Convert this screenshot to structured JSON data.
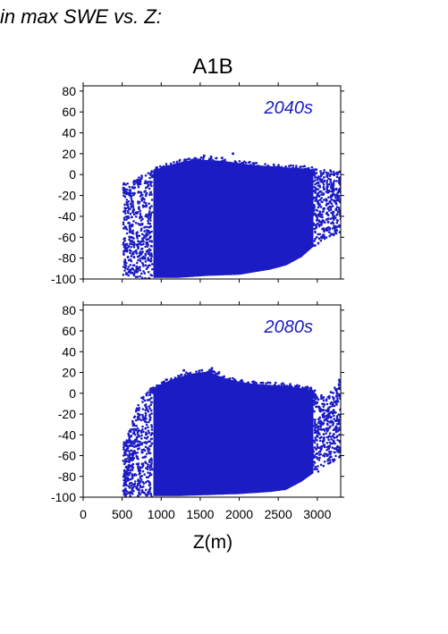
{
  "page_title": "in max SWE vs. Z:",
  "colors": {
    "points": "#1c1cc4",
    "axis": "#000000"
  },
  "chart_data": {
    "type": "scatter",
    "title": "A1B",
    "xlabel": "Z(m)",
    "ylabel": "",
    "xlim": [
      0,
      3300
    ],
    "ylim": [
      -100,
      85
    ],
    "xticks": [
      0,
      500,
      1000,
      1500,
      2000,
      2500,
      3000
    ],
    "yticks": [
      -100,
      -80,
      -60,
      -40,
      -20,
      0,
      20,
      40,
      60,
      80
    ],
    "panels": [
      {
        "label": "2040s",
        "series": [
          {
            "x_range": [
              530,
              3300
            ],
            "y_range": [
              -100,
              20
            ],
            "upper_envelope": [
              [
                600,
                -8
              ],
              [
                700,
                -2
              ],
              [
                800,
                2
              ],
              [
                900,
                4
              ],
              [
                1000,
                8
              ],
              [
                1200,
                12
              ],
              [
                1400,
                15
              ],
              [
                1600,
                15
              ],
              [
                1800,
                14
              ],
              [
                2000,
                12
              ],
              [
                2200,
                10
              ],
              [
                2400,
                9
              ],
              [
                2600,
                8
              ],
              [
                2800,
                7
              ],
              [
                2950,
                6
              ],
              [
                3100,
                4
              ],
              [
                3300,
                4
              ]
            ],
            "lower_envelope": [
              [
                600,
                -97
              ],
              [
                800,
                -100
              ],
              [
                1200,
                -100
              ],
              [
                1600,
                -98
              ],
              [
                2000,
                -97
              ],
              [
                2400,
                -92
              ],
              [
                2600,
                -88
              ],
              [
                2800,
                -80
              ],
              [
                2950,
                -70
              ],
              [
                3100,
                -62
              ],
              [
                3300,
                -55
              ]
            ],
            "outliers": [
              [
                1640,
                17
              ],
              [
                1920,
                20
              ],
              [
                1780,
                16
              ],
              [
                1550,
                18
              ]
            ]
          }
        ]
      },
      {
        "label": "2080s",
        "series": [
          {
            "x_range": [
              530,
              3300
            ],
            "y_range": [
              -100,
              24
            ],
            "upper_envelope": [
              [
                560,
                -45
              ],
              [
                620,
                -28
              ],
              [
                700,
                -12
              ],
              [
                800,
                2
              ],
              [
                900,
                6
              ],
              [
                1000,
                10
              ],
              [
                1200,
                16
              ],
              [
                1400,
                20
              ],
              [
                1600,
                22
              ],
              [
                1800,
                16
              ],
              [
                2000,
                12
              ],
              [
                2200,
                10
              ],
              [
                2400,
                9
              ],
              [
                2600,
                8
              ],
              [
                2800,
                6
              ],
              [
                2950,
                4
              ],
              [
                3100,
                -5
              ],
              [
                3300,
                14
              ]
            ],
            "lower_envelope": [
              [
                560,
                -100
              ],
              [
                1200,
                -100
              ],
              [
                1600,
                -99
              ],
              [
                2000,
                -98
              ],
              [
                2400,
                -96
              ],
              [
                2600,
                -94
              ],
              [
                2800,
                -86
              ],
              [
                2950,
                -78
              ],
              [
                3100,
                -70
              ],
              [
                3300,
                -62
              ]
            ],
            "outliers": [
              [
                1650,
                24
              ],
              [
                1520,
                22
              ],
              [
                1740,
                20
              ],
              [
                1290,
                22
              ]
            ]
          }
        ]
      }
    ]
  }
}
